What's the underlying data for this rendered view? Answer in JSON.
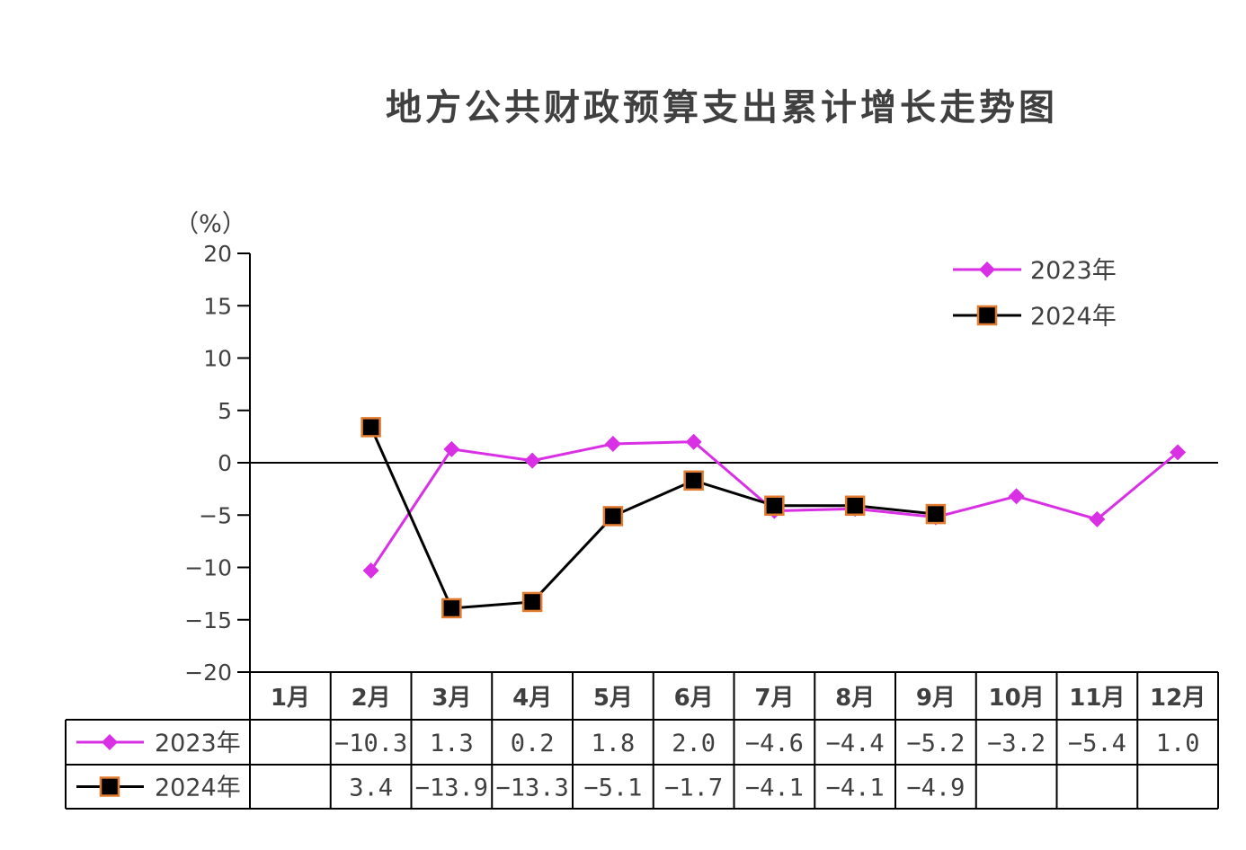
{
  "chart_data": {
    "type": "line",
    "title": "地方公共财政预算支出累计增长走势图",
    "ylabel": "（%）",
    "xlabel": "",
    "ylim": [
      -20,
      20
    ],
    "yticks": [
      20,
      15,
      10,
      5,
      0,
      -5,
      -10,
      -15,
      -20
    ],
    "ytick_labels": [
      "20",
      "15",
      "10",
      "5",
      "0",
      "−5",
      "−10",
      "−15",
      "−20"
    ],
    "categories": [
      "1月",
      "2月",
      "3月",
      "4月",
      "5月",
      "6月",
      "7月",
      "8月",
      "9月",
      "10月",
      "11月",
      "12月"
    ],
    "legend_position": "top-right",
    "grid": false,
    "series": [
      {
        "name": "2023年",
        "color": "#d930e6",
        "marker": "diamond",
        "values": [
          null,
          -10.3,
          1.3,
          0.2,
          1.8,
          2.0,
          -4.6,
          -4.4,
          -5.2,
          -3.2,
          -5.4,
          1.0
        ],
        "labels": [
          "",
          "−10.3",
          "1.3",
          "0.2",
          "1.8",
          "2.0",
          "−4.6",
          "−4.4",
          "−5.2",
          "−3.2",
          "−5.4",
          "1.0"
        ]
      },
      {
        "name": "2024年",
        "color": "#000000",
        "marker_edge_color": "#e07b30",
        "marker": "square",
        "values": [
          null,
          3.4,
          -13.9,
          -13.3,
          -5.1,
          -1.7,
          -4.1,
          -4.1,
          -4.9,
          null,
          null,
          null
        ],
        "labels": [
          "",
          "3.4",
          "−13.9",
          "−13.3",
          "−5.1",
          "−1.7",
          "−4.1",
          "−4.1",
          "−4.9",
          "",
          "",
          ""
        ]
      }
    ]
  }
}
